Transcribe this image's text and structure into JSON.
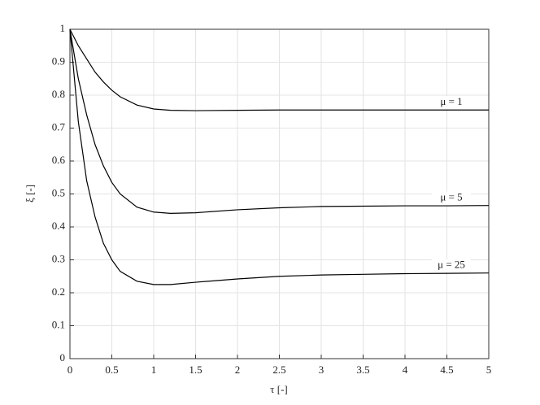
{
  "chart_data": {
    "type": "line",
    "xlabel": "τ [-]",
    "ylabel": "ξ [-]",
    "x": [
      0,
      0.1,
      0.2,
      0.3,
      0.4,
      0.5,
      0.6,
      0.8,
      1.0,
      1.2,
      1.5,
      2,
      2.5,
      3,
      3.5,
      4,
      4.5,
      5
    ],
    "series": [
      {
        "name": "μ = 1",
        "color": "#000000",
        "values": [
          1,
          0.95,
          0.91,
          0.87,
          0.84,
          0.815,
          0.795,
          0.77,
          0.758,
          0.754,
          0.753,
          0.754,
          0.755,
          0.755,
          0.755,
          0.755,
          0.755,
          0.755
        ]
      },
      {
        "name": "μ = 5",
        "color": "#000000",
        "values": [
          1,
          0.85,
          0.74,
          0.65,
          0.585,
          0.535,
          0.5,
          0.46,
          0.445,
          0.441,
          0.443,
          0.452,
          0.458,
          0.462,
          0.463,
          0.464,
          0.464,
          0.465
        ]
      },
      {
        "name": "μ = 25",
        "color": "#000000",
        "values": [
          1,
          0.72,
          0.54,
          0.43,
          0.35,
          0.3,
          0.265,
          0.235,
          0.225,
          0.225,
          0.232,
          0.242,
          0.25,
          0.254,
          0.256,
          0.258,
          0.259,
          0.26
        ]
      }
    ],
    "xlim": [
      0,
      5
    ],
    "xticks": [
      0,
      0.5,
      1,
      1.5,
      2,
      2.5,
      3,
      3.5,
      4,
      4.5,
      5
    ],
    "ylim": [
      0,
      1
    ],
    "yticks": [
      0,
      0.1,
      0.2,
      0.3,
      0.4,
      0.5,
      0.6,
      0.7,
      0.8,
      0.9,
      1
    ],
    "grid": true
  }
}
